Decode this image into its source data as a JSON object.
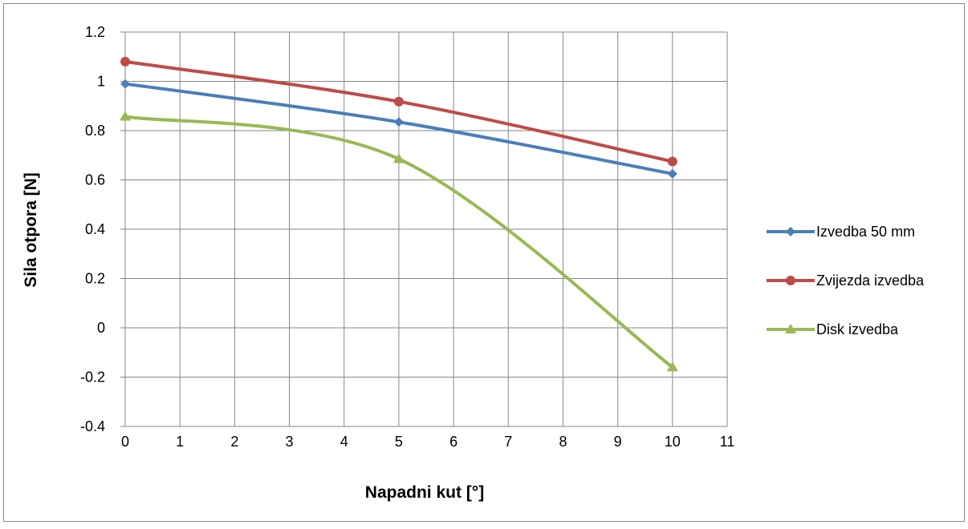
{
  "chart_data": {
    "type": "line",
    "title": "",
    "xlabel": "Napadni kut [°]",
    "ylabel": "Sila otpora [N]",
    "xlim": [
      0,
      11
    ],
    "ylim": [
      -0.4,
      1.2
    ],
    "x_ticks": [
      "0",
      "1",
      "2",
      "3",
      "4",
      "5",
      "6",
      "7",
      "8",
      "9",
      "10",
      "11"
    ],
    "y_ticks": [
      "-0.4",
      "-0.2",
      "0",
      "0.2",
      "0.4",
      "0.6",
      "0.8",
      "1",
      "1.2"
    ],
    "grid": true,
    "legend_position": "right",
    "smooth": true,
    "series": [
      {
        "name": "Izvedba 50 mm",
        "color": "#4a7ebb",
        "marker": "diamond",
        "x": [
          0,
          5,
          10
        ],
        "y": [
          0.99,
          0.835,
          0.625
        ]
      },
      {
        "name": "Zvijezda izvedba",
        "color": "#be4b48",
        "marker": "circle",
        "x": [
          0,
          5,
          10
        ],
        "y": [
          1.08,
          0.918,
          0.675
        ]
      },
      {
        "name": "Disk izvedba",
        "color": "#98b954",
        "marker": "triangle",
        "x": [
          0,
          5,
          10
        ],
        "y": [
          0.857,
          0.685,
          -0.16
        ]
      }
    ]
  }
}
